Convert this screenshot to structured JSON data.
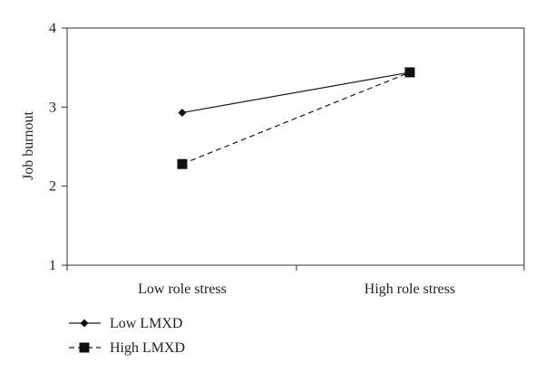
{
  "chart_data": {
    "type": "line",
    "title": "",
    "xlabel": "",
    "ylabel": "Job burnout",
    "categories": [
      "Low role stress",
      "High role stress"
    ],
    "yticks": [
      1,
      2,
      3,
      4
    ],
    "ylim": [
      1,
      4
    ],
    "grid": false,
    "legend_position": "bottom-left",
    "series": [
      {
        "name": "Low LMXD",
        "values": [
          2.93,
          3.44
        ],
        "marker": "diamond",
        "line_style": "solid",
        "color": "#1a1a1a"
      },
      {
        "name": "High LMXD",
        "values": [
          2.28,
          3.44
        ],
        "marker": "square",
        "line_style": "dashed",
        "color": "#1a1a1a"
      }
    ]
  }
}
